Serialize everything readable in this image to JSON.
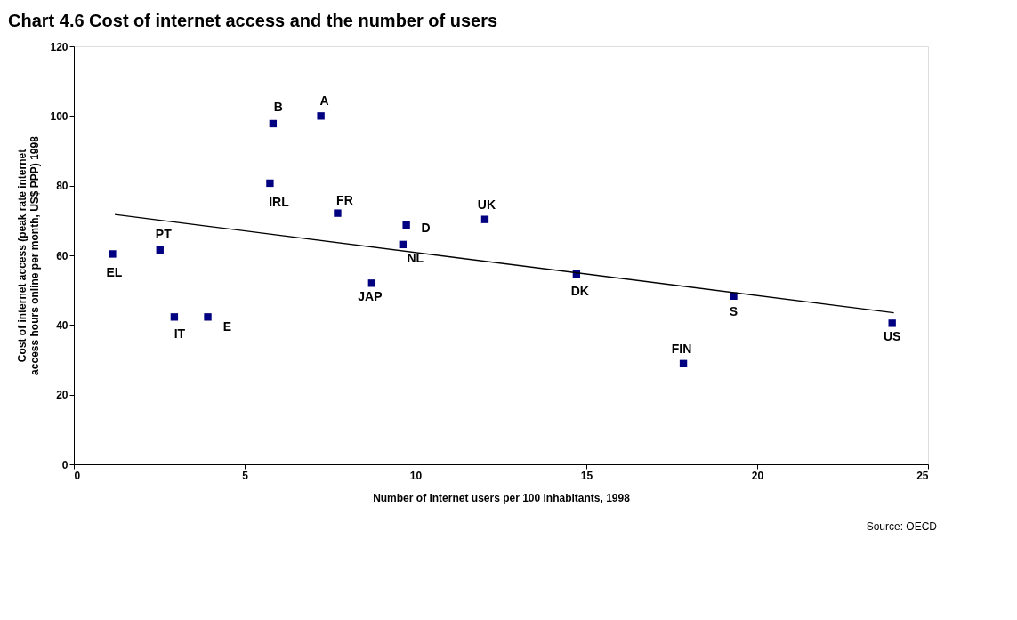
{
  "chart_data": {
    "type": "scatter",
    "title": "Chart 4.6 Cost of internet access and the number of users",
    "xlabel": "Number of internet users per 100 inhabitants, 1998",
    "ylabel": "Cost of internet access (peak rate internet access hours online per month, US$ PPP) 1998",
    "xlim": [
      0,
      25
    ],
    "xticks": [
      0,
      5,
      10,
      15,
      20,
      25
    ],
    "ylim": [
      0,
      120
    ],
    "yticks": [
      0,
      20,
      40,
      60,
      80,
      100,
      120
    ],
    "grid": false,
    "marker": "square",
    "x": [
      1.13,
      2.52,
      2.94,
      3.92,
      5.83,
      7.23,
      5.74,
      7.72,
      9.73,
      9.63,
      8.72,
      12.03,
      14.71,
      19.31,
      17.84,
      23.95
    ],
    "series": [
      {
        "color": "#000080",
        "values": [
          60.4,
          61.5,
          42.3,
          42.3,
          97.8,
          100,
          80.7,
          72.1,
          68.7,
          63.1,
          52,
          70.3,
          54.6,
          48.3,
          28.9,
          40.5
        ]
      },
      {
        "type": "line",
        "marker": "none",
        "color": "#000000",
        "x": [
          1.2,
          24
        ],
        "values": [
          71.7,
          43.5
        ]
      }
    ],
    "annotations": [
      {
        "text": "EL",
        "x": 1.13,
        "y": 60.4
      },
      {
        "text": "PT",
        "x": 2.52,
        "y": 61.5
      },
      {
        "text": "IT",
        "x": 2.94,
        "y": 42.3
      },
      {
        "text": "E",
        "x": 3.92,
        "y": 42.3
      },
      {
        "text": "B",
        "x": 5.83,
        "y": 97.8
      },
      {
        "text": "A",
        "x": 7.23,
        "y": 100
      },
      {
        "text": "IRL",
        "x": 5.74,
        "y": 80.7
      },
      {
        "text": "FR",
        "x": 7.72,
        "y": 72.1
      },
      {
        "text": "D",
        "x": 9.73,
        "y": 68.7
      },
      {
        "text": "NL",
        "x": 9.63,
        "y": 63.1
      },
      {
        "text": "JAP",
        "x": 8.72,
        "y": 52
      },
      {
        "text": "UK",
        "x": 12.03,
        "y": 70.3
      },
      {
        "text": "DK",
        "x": 14.71,
        "y": 54.6
      },
      {
        "text": "S",
        "x": 19.31,
        "y": 48.3
      },
      {
        "text": "FIN",
        "x": 17.84,
        "y": 28.9
      },
      {
        "text": "US",
        "x": 23.95,
        "y": 40.5
      },
      "Source: OECD"
    ]
  }
}
